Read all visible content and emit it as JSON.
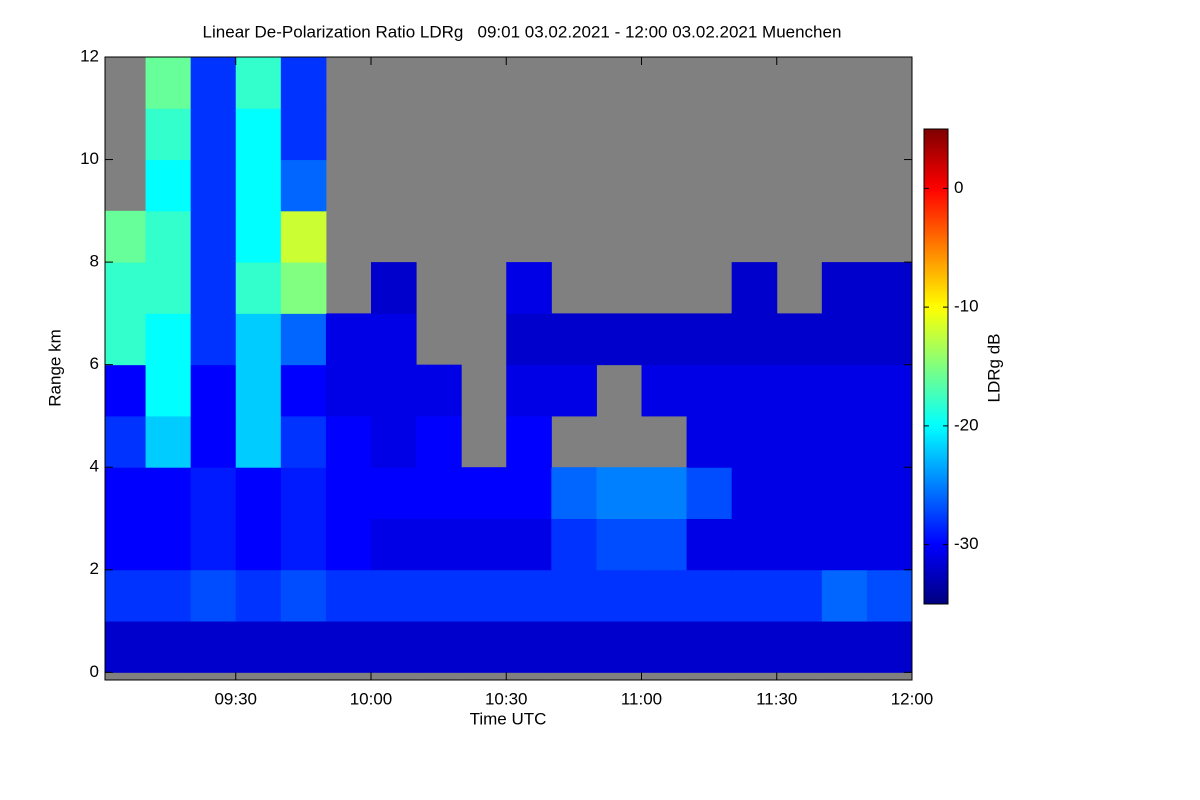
{
  "chart_data": {
    "type": "heatmap",
    "title": "Linear De-Polarization Ratio LDRg   09:01 03.02.2021 - 12:00 03.02.2021 Muenchen",
    "x_label": "Time UTC",
    "y_label": "Range km",
    "colorbar_label": "LDRg dB",
    "colormap": "jet",
    "nodata_color": "#808080",
    "xlim": [
      "09:01",
      "12:00"
    ],
    "xticks": [
      "09:30",
      "10:00",
      "10:30",
      "11:00",
      "11:30",
      "12:00"
    ],
    "ylim": [
      -0.15,
      12
    ],
    "yticks": [
      0,
      2,
      4,
      6,
      8,
      10,
      12
    ],
    "zlim": [
      -35,
      5
    ],
    "zticks": [
      0,
      -10,
      -20,
      -30
    ],
    "x": [
      "09:01",
      "09:10",
      "09:20",
      "09:30",
      "09:40",
      "09:50",
      "10:00",
      "10:10",
      "10:20",
      "10:30",
      "10:40",
      "10:50",
      "11:00",
      "11:10",
      "11:20",
      "11:30",
      "11:40",
      "11:50",
      "12:00"
    ],
    "y": [
      0,
      1,
      2,
      3,
      4,
      5,
      6,
      7,
      8,
      9,
      10,
      11,
      12
    ],
    "values": [
      [
        -32,
        -32,
        -32,
        -32,
        -32,
        -32,
        -32,
        -32,
        -32,
        -32,
        -32,
        -32,
        -32,
        -32,
        -32,
        -32,
        -32,
        -32
      ],
      [
        -28,
        -28,
        -27,
        -28,
        -27,
        -28,
        -28,
        -28,
        -28,
        -28,
        -28,
        -28,
        -28,
        -28,
        -28,
        -28,
        -26,
        -27
      ],
      [
        -30,
        -30,
        -29,
        -30,
        -29,
        -30,
        -31,
        -31,
        -31,
        -31,
        -28,
        -27,
        -27,
        -31,
        -31,
        -31,
        -31,
        -31
      ],
      [
        -30,
        -30,
        -29,
        -30,
        -29,
        -30,
        -30,
        -30,
        -30,
        -30,
        -26,
        -25,
        -25,
        -27,
        -31,
        -31,
        -31,
        -31
      ],
      [
        -28,
        -22,
        -30,
        -22,
        -28,
        -30,
        -31,
        -30,
        null,
        -30,
        null,
        null,
        null,
        -31,
        -31,
        -31,
        -31,
        -31
      ],
      [
        -30,
        -20,
        -30,
        -22,
        -30,
        -31,
        -31,
        -31,
        null,
        -31,
        -31,
        null,
        -31,
        -31,
        -31,
        -31,
        -31,
        -31
      ],
      [
        -18,
        -20,
        -28,
        -22,
        -26,
        -31,
        -31,
        null,
        null,
        -32,
        -32,
        -32,
        -32,
        -32,
        -32,
        -32,
        -32,
        -32
      ],
      [
        -18,
        -18,
        -28,
        -18,
        -15,
        null,
        -32,
        null,
        null,
        -31,
        null,
        null,
        null,
        null,
        -32,
        null,
        -32,
        -32
      ],
      [
        -16,
        -18,
        -28,
        -20,
        -12,
        null,
        null,
        null,
        null,
        null,
        null,
        null,
        null,
        null,
        null,
        null,
        null,
        null
      ],
      [
        null,
        -20,
        -28,
        -20,
        -26,
        null,
        null,
        null,
        null,
        null,
        null,
        null,
        null,
        null,
        null,
        null,
        null,
        null
      ],
      [
        null,
        -18,
        -28,
        -20,
        -28,
        null,
        null,
        null,
        null,
        null,
        null,
        null,
        null,
        null,
        null,
        null,
        null,
        null
      ],
      [
        null,
        -16,
        -28,
        -18,
        -28,
        null,
        null,
        null,
        null,
        null,
        null,
        null,
        null,
        null,
        null,
        null,
        null,
        null
      ]
    ]
  }
}
